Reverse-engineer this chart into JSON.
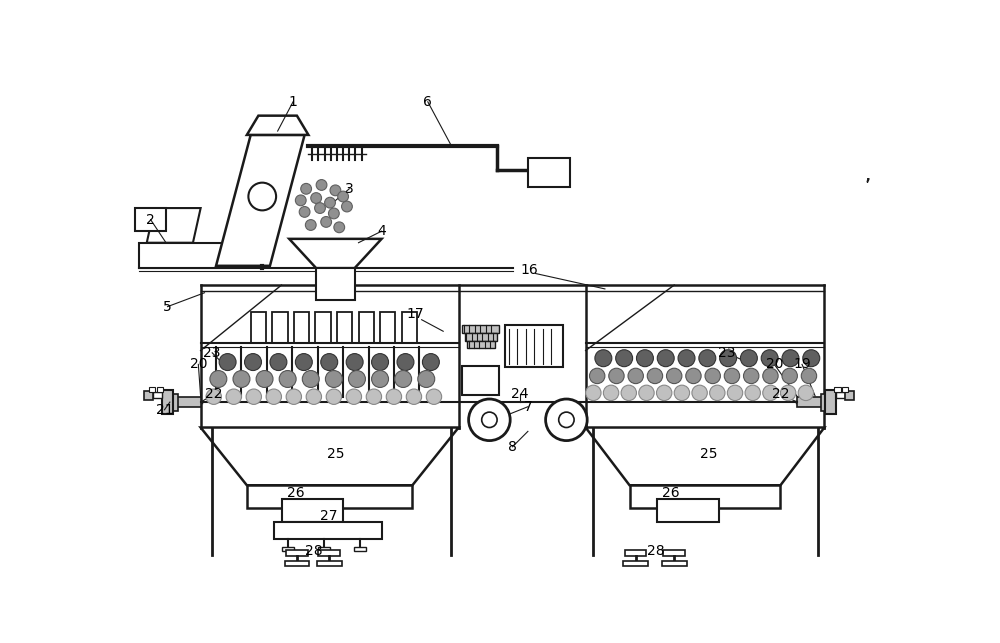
{
  "bg_color": "#ffffff",
  "lc": "#1a1a1a",
  "gray_med": "#909090",
  "gray_light": "#c0c0c0",
  "gray_dark": "#606060",
  "figsize": [
    10.0,
    6.43
  ],
  "dpi": 100
}
